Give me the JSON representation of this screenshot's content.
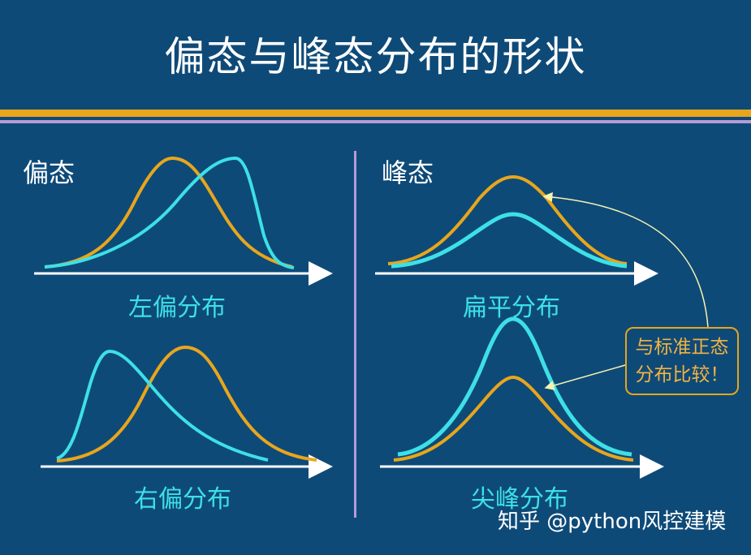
{
  "title": "偏态与峰态分布的形状",
  "skewness": {
    "heading": "偏态",
    "top_caption": "左偏分布",
    "bottom_caption": "右偏分布"
  },
  "kurtosis": {
    "heading": "峰态",
    "top_caption": "扁平分布",
    "bottom_caption": "尖峰分布"
  },
  "callout": {
    "line1": "与标准正态",
    "line2": "分布比较！"
  },
  "watermark": "知乎 @python风控建模",
  "colors": {
    "background": "#0e4a78",
    "orange_curve": "#e8a61c",
    "cyan_curve": "#3de0e6",
    "axis": "#ffffff",
    "divider": "#b59ad6"
  }
}
